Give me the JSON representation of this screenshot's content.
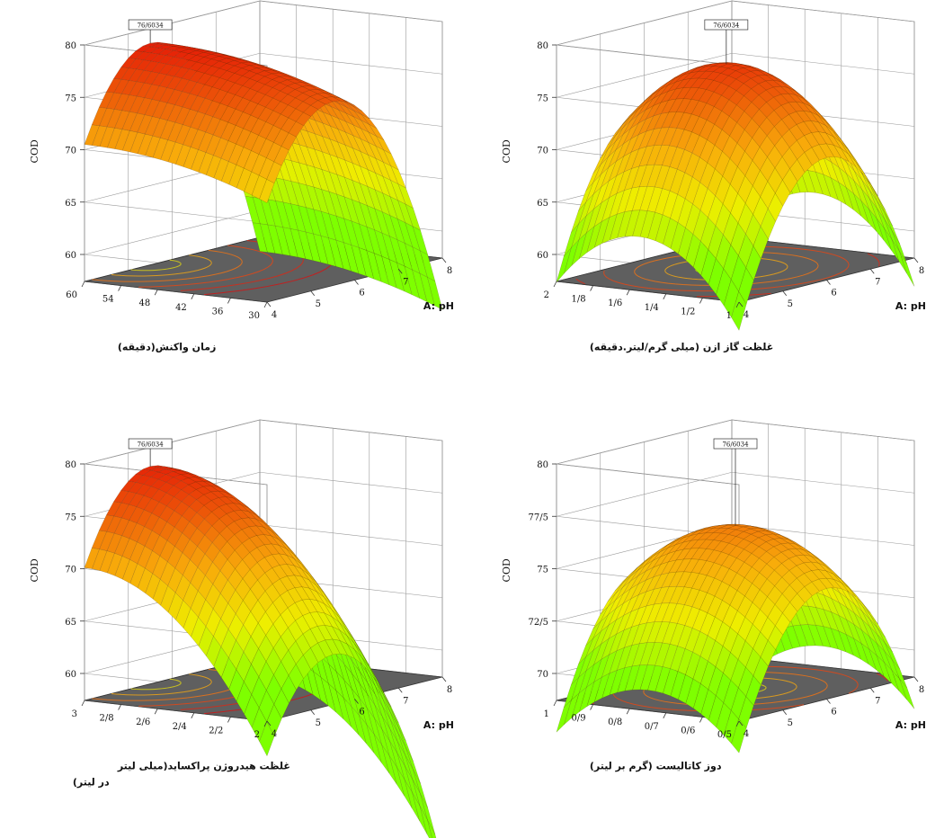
{
  "chart_data": [
    {
      "type": "surface3d",
      "zlabel": "COD",
      "x_label": "A: pH",
      "y_label": "زمان واکنش(دقیقه)",
      "x_ticks": [
        "4",
        "5",
        "6",
        "7",
        "8"
      ],
      "y_ticks": [
        "30",
        "36",
        "42",
        "48",
        "54",
        "60"
      ],
      "z_ticks": [
        "60",
        "65",
        "70",
        "75",
        "80"
      ],
      "x_range": [
        4,
        8
      ],
      "y_range": [
        30,
        60
      ],
      "z_range": [
        60,
        80
      ],
      "peak_label": "76/6034",
      "surface": {
        "x_opt": 5.5,
        "y_opt": 60,
        "z_max": 78.6,
        "x_curv": 3.6,
        "y_curv": 0.004,
        "x_exp": 2,
        "y_exp": 2,
        "x_hi_extra": 0
      },
      "corner_values": {
        "x4_y30": 58.0,
        "x4_y60": 69.5,
        "x8_y30": 57.5,
        "x8_y60": 68.0
      }
    },
    {
      "type": "surface3d",
      "zlabel": "COD",
      "x_label": "A: pH",
      "y_label": "غلظت گاز ازن (میلی گرم/لیتر.دقیقه)",
      "x_ticks": [
        "4",
        "5",
        "6",
        "7",
        "8"
      ],
      "y_ticks": [
        "1",
        "1/2",
        "1/4",
        "1/6",
        "1/8",
        "2"
      ],
      "z_ticks": [
        "60",
        "65",
        "70",
        "75",
        "80"
      ],
      "x_range": [
        4,
        8
      ],
      "y_range": [
        1,
        2
      ],
      "z_range": [
        60,
        80
      ],
      "peak_label": "76/6034",
      "surface": {
        "x_opt": 6.0,
        "y_opt": 1.55,
        "z_max": 77.0,
        "x_curv": 3.6,
        "y_curv": 26,
        "x_exp": 2,
        "y_exp": 2,
        "x_hi_extra": 0
      },
      "corner_values": {
        "x4_y1": 58.5,
        "x4_y2": 69.5,
        "x8_y1": 58.5,
        "x8_y2": 66.0
      }
    },
    {
      "type": "surface3d",
      "zlabel": "COD",
      "x_label": "A: pH",
      "y_label": "غلظت هیدروژن پراکساید(میلی لیتر",
      "y_label_line2": "در لیتر)",
      "x_ticks": [
        "4",
        "5",
        "6",
        "7",
        "8"
      ],
      "y_ticks": [
        "2",
        "2/2",
        "2/4",
        "2/6",
        "2/8",
        "3"
      ],
      "z_ticks": [
        "60",
        "65",
        "70",
        "75",
        "80"
      ],
      "x_range": [
        4,
        8
      ],
      "y_range": [
        2,
        3
      ],
      "z_range": [
        60,
        80
      ],
      "peak_label": "76/6034",
      "surface": {
        "x_opt": 5.5,
        "y_opt": 3,
        "z_max": 78.2,
        "x_curv": 3.6,
        "y_curv": 16,
        "x_exp": 2,
        "y_exp": 2,
        "x_hi_extra": 0
      },
      "corner_values": {
        "x4_y2": 58.0,
        "x4_y3": 71.0,
        "x8_y2": 57.5,
        "x8_y3": 67.5
      }
    },
    {
      "type": "surface3d",
      "zlabel": "COD",
      "x_label": "A: pH",
      "y_label": "دوز کاتالیست (گرم بر لیتر)",
      "x_ticks": [
        "4",
        "5",
        "6",
        "7",
        "8"
      ],
      "y_ticks": [
        "0/5",
        "0/6",
        "0/7",
        "0/8",
        "0/9",
        "1"
      ],
      "z_ticks": [
        "70",
        "72/5",
        "75",
        "77/5",
        "80"
      ],
      "x_range": [
        4,
        8
      ],
      "y_range": [
        0.5,
        1
      ],
      "z_range": [
        70,
        80
      ],
      "peak_label": "76/6034",
      "surface": {
        "x_opt": 6.0,
        "y_opt": 0.75,
        "z_max": 76.5,
        "x_curv": 1.7,
        "y_curv": 40,
        "x_exp": 2,
        "y_exp": 2,
        "x_hi_extra": 0
      },
      "corner_values": {
        "x4_y0/5": 65.5,
        "x4_y1": 70.3,
        "x8_y0/5": 66.0,
        "x8_y1": 68.0
      }
    }
  ]
}
